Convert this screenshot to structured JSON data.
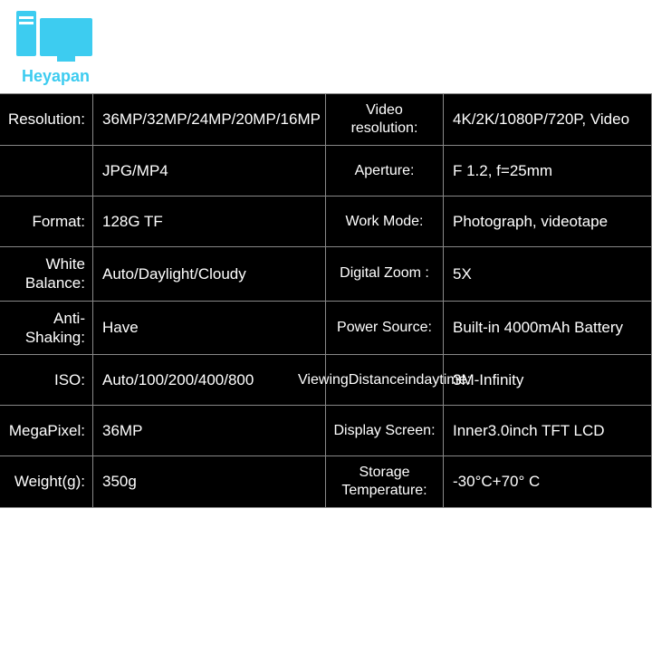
{
  "brand": "Heyapan",
  "colors": {
    "brand": "#3dccf0",
    "table_bg": "#000000",
    "text": "#ffffff",
    "border": "#888888"
  },
  "rows": [
    {
      "l1": "Resolution:",
      "v1": "36MP/32MP/24MP/20MP/16MP",
      "l2": "Video resolution:",
      "v2": "4K/2K/1080P/720P, Video"
    },
    {
      "l1": "",
      "v1": "JPG/MP4",
      "l2": "Aperture:",
      "v2": "F 1.2, f=25mm"
    },
    {
      "l1": "Format:",
      "v1": "128G TF",
      "l2": "Work Mode:",
      "v2": "Photograph, videotape"
    },
    {
      "l1": "White Balance:",
      "v1": "Auto/Daylight/Cloudy",
      "l2": "Digital Zoom :",
      "v2": "5X"
    },
    {
      "l1": "Anti-Shaking:",
      "v1": "Have",
      "l2": "Power Source:",
      "v2": "Built-in 4000mAh Battery"
    },
    {
      "l1": "ISO:",
      "v1": "Auto/100/200/400/800",
      "l2": "ViewingDistanceindaytime:",
      "v2": "3M-Infinity",
      "smallLabel": true
    },
    {
      "l1": "MegaPixel:",
      "v1": "36MP",
      "l2": "Display Screen:",
      "v2": "Inner3.0inch TFT LCD"
    },
    {
      "l1": "Weight(g):",
      "v1": "350g",
      "l2": "Storage Temperature:",
      "v2": "-30°C+70° C"
    }
  ]
}
